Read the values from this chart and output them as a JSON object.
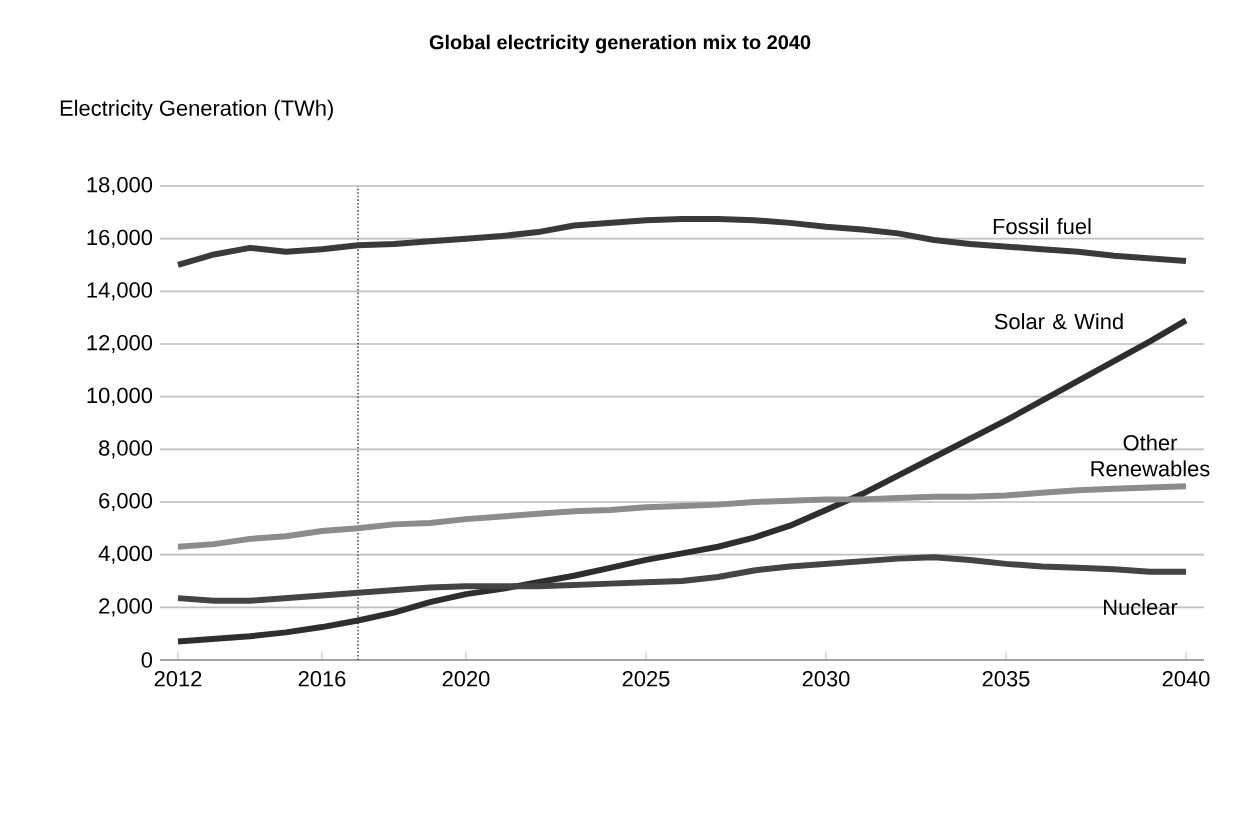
{
  "chart_data": {
    "type": "line",
    "title": "Global electricity generation mix to 2040",
    "ylabel": "Electricity Generation  (TWh)",
    "x": [
      2012,
      2013,
      2014,
      2015,
      2016,
      2017,
      2018,
      2019,
      2020,
      2021,
      2022,
      2023,
      2024,
      2025,
      2026,
      2027,
      2028,
      2029,
      2030,
      2031,
      2032,
      2033,
      2034,
      2035,
      2036,
      2037,
      2038,
      2039,
      2040
    ],
    "series": [
      {
        "name": "Fossil fuel",
        "color": "#3a3a3a",
        "values": [
          15000,
          15400,
          15650,
          15500,
          15600,
          15750,
          15800,
          15900,
          16000,
          16100,
          16250,
          16500,
          16600,
          16700,
          16750,
          16750,
          16700,
          16600,
          16450,
          16350,
          16200,
          15950,
          15800,
          15700,
          15600,
          15500,
          15350,
          15250,
          15150
        ]
      },
      {
        "name": "Solar & Wind",
        "color": "#2e2e2e",
        "values": [
          700,
          800,
          900,
          1050,
          1250,
          1500,
          1800,
          2200,
          2500,
          2700,
          2950,
          3200,
          3500,
          3800,
          4050,
          4300,
          4650,
          5100,
          5700,
          6300,
          7000,
          7700,
          8400,
          9100,
          9850,
          10600,
          11350,
          12100,
          12900
        ]
      },
      {
        "name": "Other Renewables",
        "color": "#8c8c8c",
        "values": [
          4300,
          4400,
          4600,
          4700,
          4900,
          5000,
          5150,
          5200,
          5350,
          5450,
          5550,
          5650,
          5700,
          5800,
          5850,
          5900,
          6000,
          6050,
          6100,
          6100,
          6150,
          6200,
          6200,
          6250,
          6350,
          6450,
          6500,
          6550,
          6600
        ]
      },
      {
        "name": "Nuclear",
        "color": "#444444",
        "values": [
          2350,
          2250,
          2250,
          2350,
          2450,
          2550,
          2650,
          2750,
          2800,
          2800,
          2800,
          2850,
          2900,
          2950,
          3000,
          3150,
          3400,
          3550,
          3650,
          3750,
          3850,
          3900,
          3800,
          3650,
          3550,
          3500,
          3450,
          3350,
          3350
        ]
      }
    ],
    "xlim": [
      2011.5,
      2040.5
    ],
    "xticks": [
      2012,
      2016,
      2020,
      2025,
      2030,
      2035,
      2040
    ],
    "ylim": [
      0,
      18000
    ],
    "yticks": [
      {
        "value": 0,
        "label": "0"
      },
      {
        "value": 2000,
        "label": "2,000"
      },
      {
        "value": 4000,
        "label": "4,000"
      },
      {
        "value": 6000,
        "label": "6,000"
      },
      {
        "value": 8000,
        "label": "8,000"
      },
      {
        "value": 10000,
        "label": "10,000"
      },
      {
        "value": 12000,
        "label": "12,000"
      },
      {
        "value": 14000,
        "label": "14,000"
      },
      {
        "value": 16000,
        "label": "16,000"
      },
      {
        "value": 18000,
        "label": "18,000"
      }
    ],
    "ref_lines": [
      {
        "axis": "x",
        "value": 2017,
        "line_style": "dotted",
        "color": "#555555"
      }
    ],
    "grid": "y",
    "marker": "none",
    "line_style": "solid"
  }
}
